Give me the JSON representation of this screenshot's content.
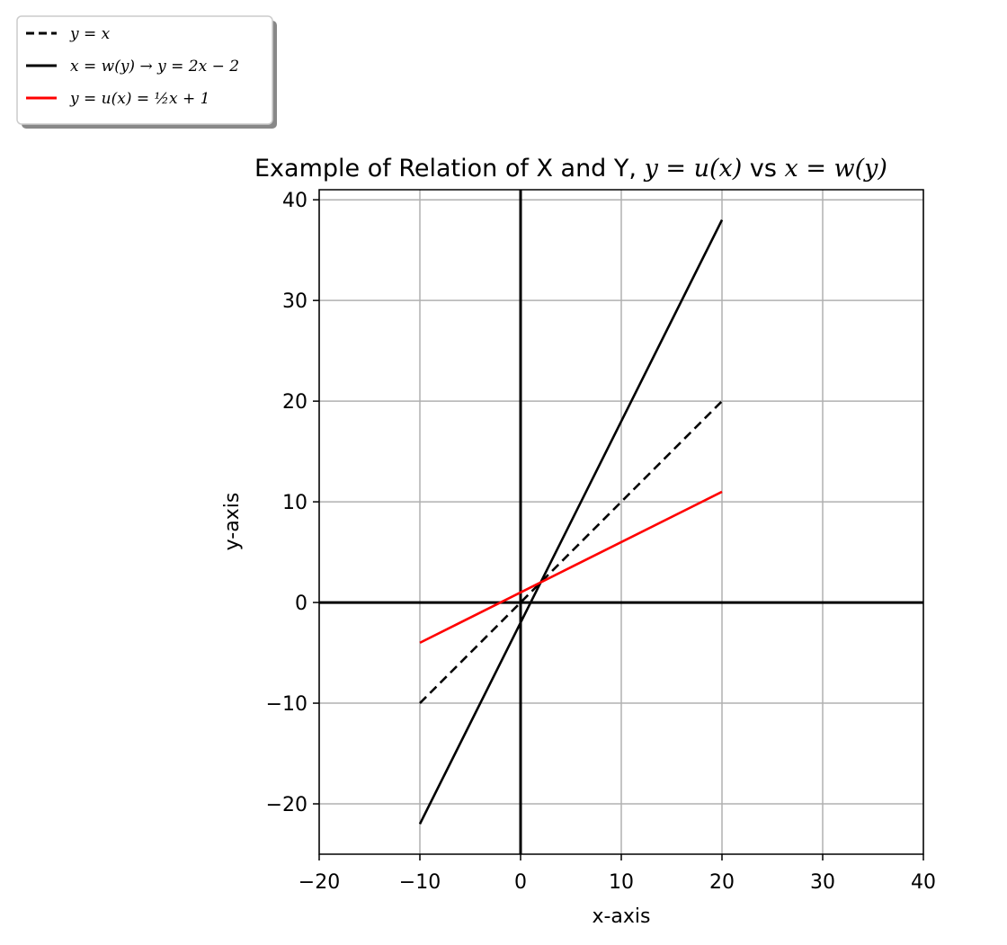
{
  "chart_data": {
    "type": "line",
    "title": "Example of Relation of X and Y, y = u(x) vs x = w(y)",
    "title_parts": {
      "prefix": "Example of Relation of X and Y, ",
      "math1": "y = u(x)",
      "middle": " vs ",
      "math2": "x = w(y)"
    },
    "xlabel": "x-axis",
    "ylabel": "y-axis",
    "xlim": [
      -20,
      40
    ],
    "ylim": [
      -25,
      41
    ],
    "xticks": [
      -20,
      -10,
      0,
      10,
      20,
      30,
      40
    ],
    "yticks": [
      -20,
      -10,
      0,
      10,
      20,
      30,
      40
    ],
    "xtick_labels": [
      "−20",
      "−10",
      "0",
      "10",
      "20",
      "30",
      "40"
    ],
    "ytick_labels": [
      "−20",
      "−10",
      "0",
      "10",
      "20",
      "30",
      "40"
    ],
    "grid": true,
    "legend_position": "top-left (outside plot area)",
    "reference_axes": [
      "x = 0",
      "y = 0"
    ],
    "series": [
      {
        "name": "y = x",
        "style": "dashed",
        "color": "#000000",
        "x": [
          -10,
          20
        ],
        "y": [
          -10,
          20
        ]
      },
      {
        "name": "x = w(y) → y = 2x − 2",
        "style": "solid",
        "color": "#000000",
        "x": [
          -10,
          20
        ],
        "y": [
          -22,
          38
        ]
      },
      {
        "name": "y = u(x) = ½x + 1",
        "style": "solid",
        "color": "#ff0000",
        "x": [
          -10,
          20
        ],
        "y": [
          -4,
          11
        ]
      }
    ]
  }
}
